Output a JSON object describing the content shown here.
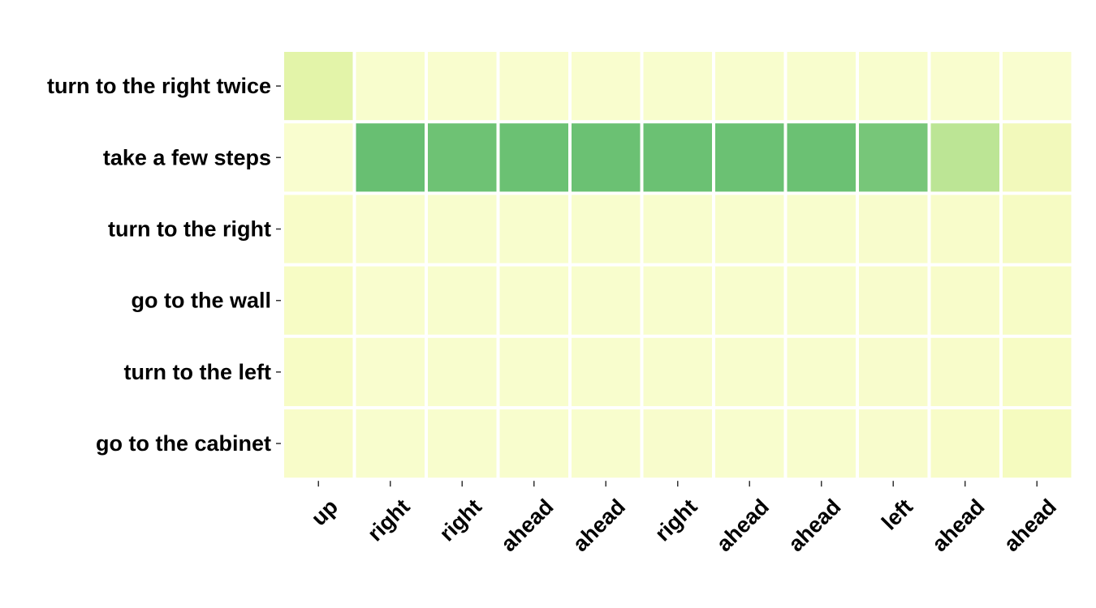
{
  "chart_data": {
    "type": "heatmap",
    "title": "",
    "xlabel": "",
    "ylabel": "",
    "x_categories": [
      "up",
      "right",
      "right",
      "ahead",
      "ahead",
      "right",
      "ahead",
      "ahead",
      "left",
      "ahead",
      "ahead"
    ],
    "y_categories": [
      "turn to the right twice",
      "take a few steps",
      "turn to the right",
      "go to the wall",
      "turn to the left",
      "go to the cabinet"
    ],
    "values": [
      [
        0.3,
        0.03,
        0.02,
        0.02,
        0.02,
        0.03,
        0.03,
        0.03,
        0.03,
        0.02,
        0.01
      ],
      [
        0.01,
        0.82,
        0.78,
        0.8,
        0.8,
        0.8,
        0.8,
        0.8,
        0.72,
        0.45,
        0.18
      ],
      [
        0.07,
        0.02,
        0.03,
        0.03,
        0.03,
        0.03,
        0.03,
        0.03,
        0.04,
        0.05,
        0.12
      ],
      [
        0.1,
        0.02,
        0.03,
        0.03,
        0.03,
        0.03,
        0.03,
        0.03,
        0.04,
        0.05,
        0.09
      ],
      [
        0.1,
        0.02,
        0.03,
        0.03,
        0.03,
        0.03,
        0.03,
        0.03,
        0.04,
        0.05,
        0.1
      ],
      [
        0.06,
        0.03,
        0.03,
        0.03,
        0.03,
        0.04,
        0.03,
        0.03,
        0.04,
        0.07,
        0.15
      ]
    ],
    "colormap": [
      "#f9fdd0",
      "#f6fbc0",
      "#e7f5ab",
      "#c2e898",
      "#98d283",
      "#78c679",
      "#63bd6f",
      "#5bb569"
    ],
    "value_range": [
      0,
      1
    ],
    "grid": false,
    "legend": "none"
  }
}
